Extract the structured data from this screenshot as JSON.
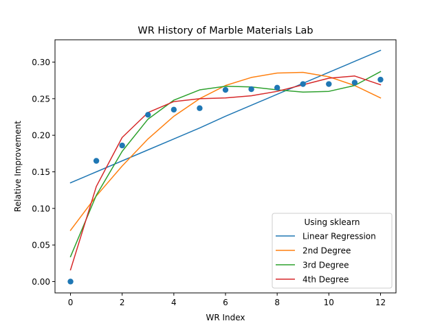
{
  "chart_data": {
    "type": "line",
    "title": "WR History of Marble Materials Lab",
    "xlabel": "WR Index",
    "ylabel": "Relative Improvement",
    "xlim": [
      -0.6,
      12.6
    ],
    "ylim": [
      -0.0155,
      0.3305
    ],
    "xticks": [
      0,
      2,
      4,
      6,
      8,
      10,
      12
    ],
    "yticks": [
      0.0,
      0.05,
      0.1,
      0.15,
      0.2,
      0.25,
      0.3
    ],
    "xtick_labels": [
      "0",
      "2",
      "4",
      "6",
      "8",
      "10",
      "12"
    ],
    "ytick_labels": [
      "0.00",
      "0.05",
      "0.10",
      "0.15",
      "0.20",
      "0.25",
      "0.30"
    ],
    "grid": false,
    "legend": {
      "title": "Using sklearn",
      "placement": "lower-right"
    },
    "scatter": {
      "color": "#1f77b4",
      "x": [
        0,
        1,
        2,
        3,
        4,
        5,
        6,
        7,
        8,
        9,
        10,
        11,
        12
      ],
      "y": [
        0.0,
        0.165,
        0.186,
        0.228,
        0.235,
        0.237,
        0.262,
        0.263,
        0.265,
        0.27,
        0.27,
        0.272,
        0.276
      ]
    },
    "x": [
      0,
      1,
      2,
      3,
      4,
      5,
      6,
      7,
      8,
      9,
      10,
      11,
      12
    ],
    "series": [
      {
        "name": "Linear Regression",
        "color": "#1f77b4",
        "values": [
          0.135,
          0.15,
          0.165,
          0.18,
          0.195,
          0.21,
          0.226,
          0.241,
          0.256,
          0.271,
          0.286,
          0.301,
          0.316
        ]
      },
      {
        "name": "2nd Degree",
        "color": "#ff7f0e",
        "values": [
          0.07,
          0.117,
          0.158,
          0.195,
          0.226,
          0.25,
          0.268,
          0.279,
          0.285,
          0.286,
          0.28,
          0.268,
          0.251
        ]
      },
      {
        "name": "3rd Degree",
        "color": "#2ca02c",
        "values": [
          0.034,
          0.118,
          0.178,
          0.222,
          0.248,
          0.262,
          0.267,
          0.266,
          0.262,
          0.259,
          0.26,
          0.268,
          0.287
        ]
      },
      {
        "name": "4th Degree",
        "color": "#d62728",
        "values": [
          0.016,
          0.13,
          0.197,
          0.231,
          0.246,
          0.25,
          0.251,
          0.254,
          0.26,
          0.269,
          0.278,
          0.281,
          0.269
        ]
      }
    ]
  }
}
